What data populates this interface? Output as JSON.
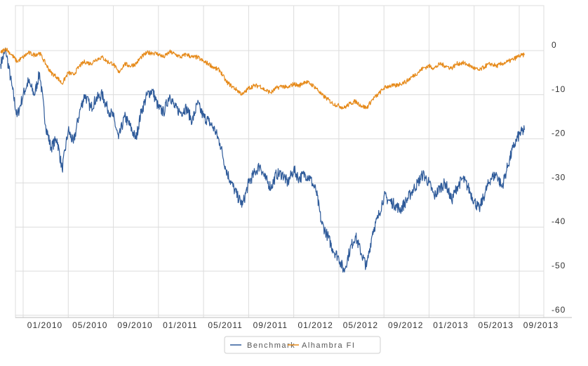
{
  "chart_data": {
    "type": "line",
    "title": "",
    "xlabel": "",
    "ylabel": "",
    "x_ticks": [
      "01/2010",
      "05/2010",
      "09/2010",
      "01/2011",
      "05/2011",
      "09/2011",
      "01/2012",
      "05/2012",
      "09/2012",
      "01/2013",
      "05/2013",
      "09/2013"
    ],
    "y_ticks": [
      "0",
      "-10",
      "-20",
      "-30",
      "-40",
      "-50",
      "-60"
    ],
    "ylim": [
      -60,
      0
    ],
    "xlim": [
      "2009-11",
      "2013-09"
    ],
    "grid": true,
    "legend_position": "bottom",
    "series": [
      {
        "name": "Benchmark",
        "color": "#2f5b9a",
        "points": [
          [
            "2009-11-01",
            -3
          ],
          [
            "2009-11-15",
            0
          ],
          [
            "2009-12-01",
            -8
          ],
          [
            "2009-12-15",
            -15
          ],
          [
            "2010-01-01",
            -10
          ],
          [
            "2010-01-15",
            -7
          ],
          [
            "2010-02-01",
            -10
          ],
          [
            "2010-02-15",
            -5
          ],
          [
            "2010-03-01",
            -17
          ],
          [
            "2010-03-15",
            -22
          ],
          [
            "2010-04-01",
            -20
          ],
          [
            "2010-04-15",
            -27
          ],
          [
            "2010-05-01",
            -18
          ],
          [
            "2010-05-15",
            -21
          ],
          [
            "2010-06-01",
            -14
          ],
          [
            "2010-06-15",
            -10
          ],
          [
            "2010-07-01",
            -13
          ],
          [
            "2010-07-15",
            -11
          ],
          [
            "2010-08-01",
            -10
          ],
          [
            "2010-08-15",
            -13
          ],
          [
            "2010-09-01",
            -15
          ],
          [
            "2010-09-15",
            -20
          ],
          [
            "2010-10-01",
            -15
          ],
          [
            "2010-10-15",
            -17
          ],
          [
            "2010-11-01",
            -20
          ],
          [
            "2010-11-15",
            -14
          ],
          [
            "2010-12-01",
            -10
          ],
          [
            "2010-12-15",
            -9
          ],
          [
            "2011-01-01",
            -13
          ],
          [
            "2011-01-15",
            -14
          ],
          [
            "2011-02-01",
            -10
          ],
          [
            "2011-02-15",
            -13
          ],
          [
            "2011-03-01",
            -14
          ],
          [
            "2011-03-15",
            -13
          ],
          [
            "2011-04-01",
            -16
          ],
          [
            "2011-04-15",
            -12
          ],
          [
            "2011-05-01",
            -15
          ],
          [
            "2011-05-15",
            -16
          ],
          [
            "2011-06-01",
            -18
          ],
          [
            "2011-06-15",
            -21
          ],
          [
            "2011-07-01",
            -27
          ],
          [
            "2011-07-15",
            -30
          ],
          [
            "2011-08-01",
            -33
          ],
          [
            "2011-08-15",
            -35
          ],
          [
            "2011-09-01",
            -30
          ],
          [
            "2011-09-15",
            -28
          ],
          [
            "2011-10-01",
            -26
          ],
          [
            "2011-10-15",
            -29
          ],
          [
            "2011-11-01",
            -31
          ],
          [
            "2011-11-15",
            -28
          ],
          [
            "2011-12-01",
            -28
          ],
          [
            "2011-12-15",
            -30
          ],
          [
            "2012-01-01",
            -27
          ],
          [
            "2012-01-15",
            -29
          ],
          [
            "2012-02-01",
            -28
          ],
          [
            "2012-02-15",
            -29
          ],
          [
            "2012-03-01",
            -32
          ],
          [
            "2012-03-15",
            -39
          ],
          [
            "2012-04-01",
            -42
          ],
          [
            "2012-04-15",
            -45
          ],
          [
            "2012-05-01",
            -47
          ],
          [
            "2012-05-15",
            -50
          ],
          [
            "2012-06-01",
            -45
          ],
          [
            "2012-06-15",
            -42
          ],
          [
            "2012-07-01",
            -46
          ],
          [
            "2012-07-15",
            -49
          ],
          [
            "2012-08-01",
            -41
          ],
          [
            "2012-08-15",
            -38
          ],
          [
            "2012-09-01",
            -33
          ],
          [
            "2012-09-15",
            -34
          ],
          [
            "2012-10-01",
            -35
          ],
          [
            "2012-10-15",
            -36
          ],
          [
            "2012-11-01",
            -34
          ],
          [
            "2012-11-15",
            -32
          ],
          [
            "2012-12-01",
            -30
          ],
          [
            "2012-12-15",
            -28
          ],
          [
            "2013-01-01",
            -30
          ],
          [
            "2013-01-15",
            -33
          ],
          [
            "2013-02-01",
            -31
          ],
          [
            "2013-02-15",
            -30
          ],
          [
            "2013-03-01",
            -34
          ],
          [
            "2013-03-15",
            -31
          ],
          [
            "2013-04-01",
            -29
          ],
          [
            "2013-04-15",
            -31
          ],
          [
            "2013-05-01",
            -34
          ],
          [
            "2013-05-15",
            -36
          ],
          [
            "2013-06-01",
            -32
          ],
          [
            "2013-06-15",
            -29
          ],
          [
            "2013-07-01",
            -28
          ],
          [
            "2013-07-15",
            -31
          ],
          [
            "2013-08-01",
            -26
          ],
          [
            "2013-08-15",
            -22
          ],
          [
            "2013-09-01",
            -19
          ],
          [
            "2013-09-15",
            -18
          ]
        ]
      },
      {
        "name": "Alhambra FI",
        "color": "#e68a1a",
        "points": [
          [
            "2009-11-01",
            -0.5
          ],
          [
            "2009-11-15",
            0.5
          ],
          [
            "2009-12-01",
            -1
          ],
          [
            "2009-12-15",
            -2.5
          ],
          [
            "2010-01-01",
            -1.5
          ],
          [
            "2010-01-15",
            -0.5
          ],
          [
            "2010-02-01",
            -1
          ],
          [
            "2010-02-15",
            -0.5
          ],
          [
            "2010-03-01",
            -3
          ],
          [
            "2010-03-15",
            -5
          ],
          [
            "2010-04-01",
            -6
          ],
          [
            "2010-04-15",
            -7.5
          ],
          [
            "2010-05-01",
            -5
          ],
          [
            "2010-05-15",
            -5.5
          ],
          [
            "2010-06-01",
            -3.5
          ],
          [
            "2010-06-15",
            -2.5
          ],
          [
            "2010-07-01",
            -3
          ],
          [
            "2010-07-15",
            -2
          ],
          [
            "2010-08-01",
            -1.5
          ],
          [
            "2010-08-15",
            -2.5
          ],
          [
            "2010-09-01",
            -3
          ],
          [
            "2010-09-15",
            -5
          ],
          [
            "2010-10-01",
            -3
          ],
          [
            "2010-10-15",
            -3.5
          ],
          [
            "2010-11-01",
            -3
          ],
          [
            "2010-11-15",
            -1.5
          ],
          [
            "2010-12-01",
            -0.5
          ],
          [
            "2010-12-15",
            -0.5
          ],
          [
            "2011-01-01",
            -0.8
          ],
          [
            "2011-01-15",
            -1.5
          ],
          [
            "2011-02-01",
            -0.3
          ],
          [
            "2011-02-15",
            -0.8
          ],
          [
            "2011-03-01",
            -1.5
          ],
          [
            "2011-03-15",
            -0.8
          ],
          [
            "2011-04-01",
            -1.5
          ],
          [
            "2011-04-15",
            -1.5
          ],
          [
            "2011-05-01",
            -2.5
          ],
          [
            "2011-05-15",
            -3
          ],
          [
            "2011-06-01",
            -4
          ],
          [
            "2011-06-15",
            -4.5
          ],
          [
            "2011-07-01",
            -7
          ],
          [
            "2011-07-15",
            -8
          ],
          [
            "2011-08-01",
            -9
          ],
          [
            "2011-08-15",
            -10
          ],
          [
            "2011-09-01",
            -8.5
          ],
          [
            "2011-09-15",
            -8
          ],
          [
            "2011-10-01",
            -8
          ],
          [
            "2011-10-15",
            -9
          ],
          [
            "2011-11-01",
            -9.5
          ],
          [
            "2011-11-15",
            -8.5
          ],
          [
            "2011-12-01",
            -8
          ],
          [
            "2011-12-15",
            -8.5
          ],
          [
            "2012-01-01",
            -7.5
          ],
          [
            "2012-01-15",
            -8
          ],
          [
            "2012-02-01",
            -7
          ],
          [
            "2012-02-15",
            -7.5
          ],
          [
            "2012-03-01",
            -8.5
          ],
          [
            "2012-03-15",
            -10
          ],
          [
            "2012-04-01",
            -11
          ],
          [
            "2012-04-15",
            -12
          ],
          [
            "2012-05-01",
            -12.5
          ],
          [
            "2012-05-15",
            -13
          ],
          [
            "2012-06-01",
            -12
          ],
          [
            "2012-06-15",
            -11.5
          ],
          [
            "2012-07-01",
            -12.5
          ],
          [
            "2012-07-15",
            -13
          ],
          [
            "2012-08-01",
            -11
          ],
          [
            "2012-08-15",
            -10
          ],
          [
            "2012-09-01",
            -8.5
          ],
          [
            "2012-09-15",
            -8
          ],
          [
            "2012-10-01",
            -8
          ],
          [
            "2012-10-15",
            -7.5
          ],
          [
            "2012-11-01",
            -7
          ],
          [
            "2012-11-15",
            -6
          ],
          [
            "2012-12-01",
            -5
          ],
          [
            "2012-12-15",
            -4
          ],
          [
            "2013-01-01",
            -3.5
          ],
          [
            "2013-01-15",
            -4
          ],
          [
            "2013-02-01",
            -3
          ],
          [
            "2013-02-15",
            -3.5
          ],
          [
            "2013-03-01",
            -4
          ],
          [
            "2013-03-15",
            -3
          ],
          [
            "2013-04-01",
            -2.8
          ],
          [
            "2013-04-15",
            -3.2
          ],
          [
            "2013-05-01",
            -4
          ],
          [
            "2013-05-15",
            -4.5
          ],
          [
            "2013-06-01",
            -3.5
          ],
          [
            "2013-06-15",
            -3
          ],
          [
            "2013-07-01",
            -3.5
          ],
          [
            "2013-07-15",
            -3
          ],
          [
            "2013-08-01",
            -2.5
          ],
          [
            "2013-08-15",
            -2
          ],
          [
            "2013-09-01",
            -1.2
          ],
          [
            "2013-09-15",
            -1
          ]
        ]
      }
    ]
  }
}
